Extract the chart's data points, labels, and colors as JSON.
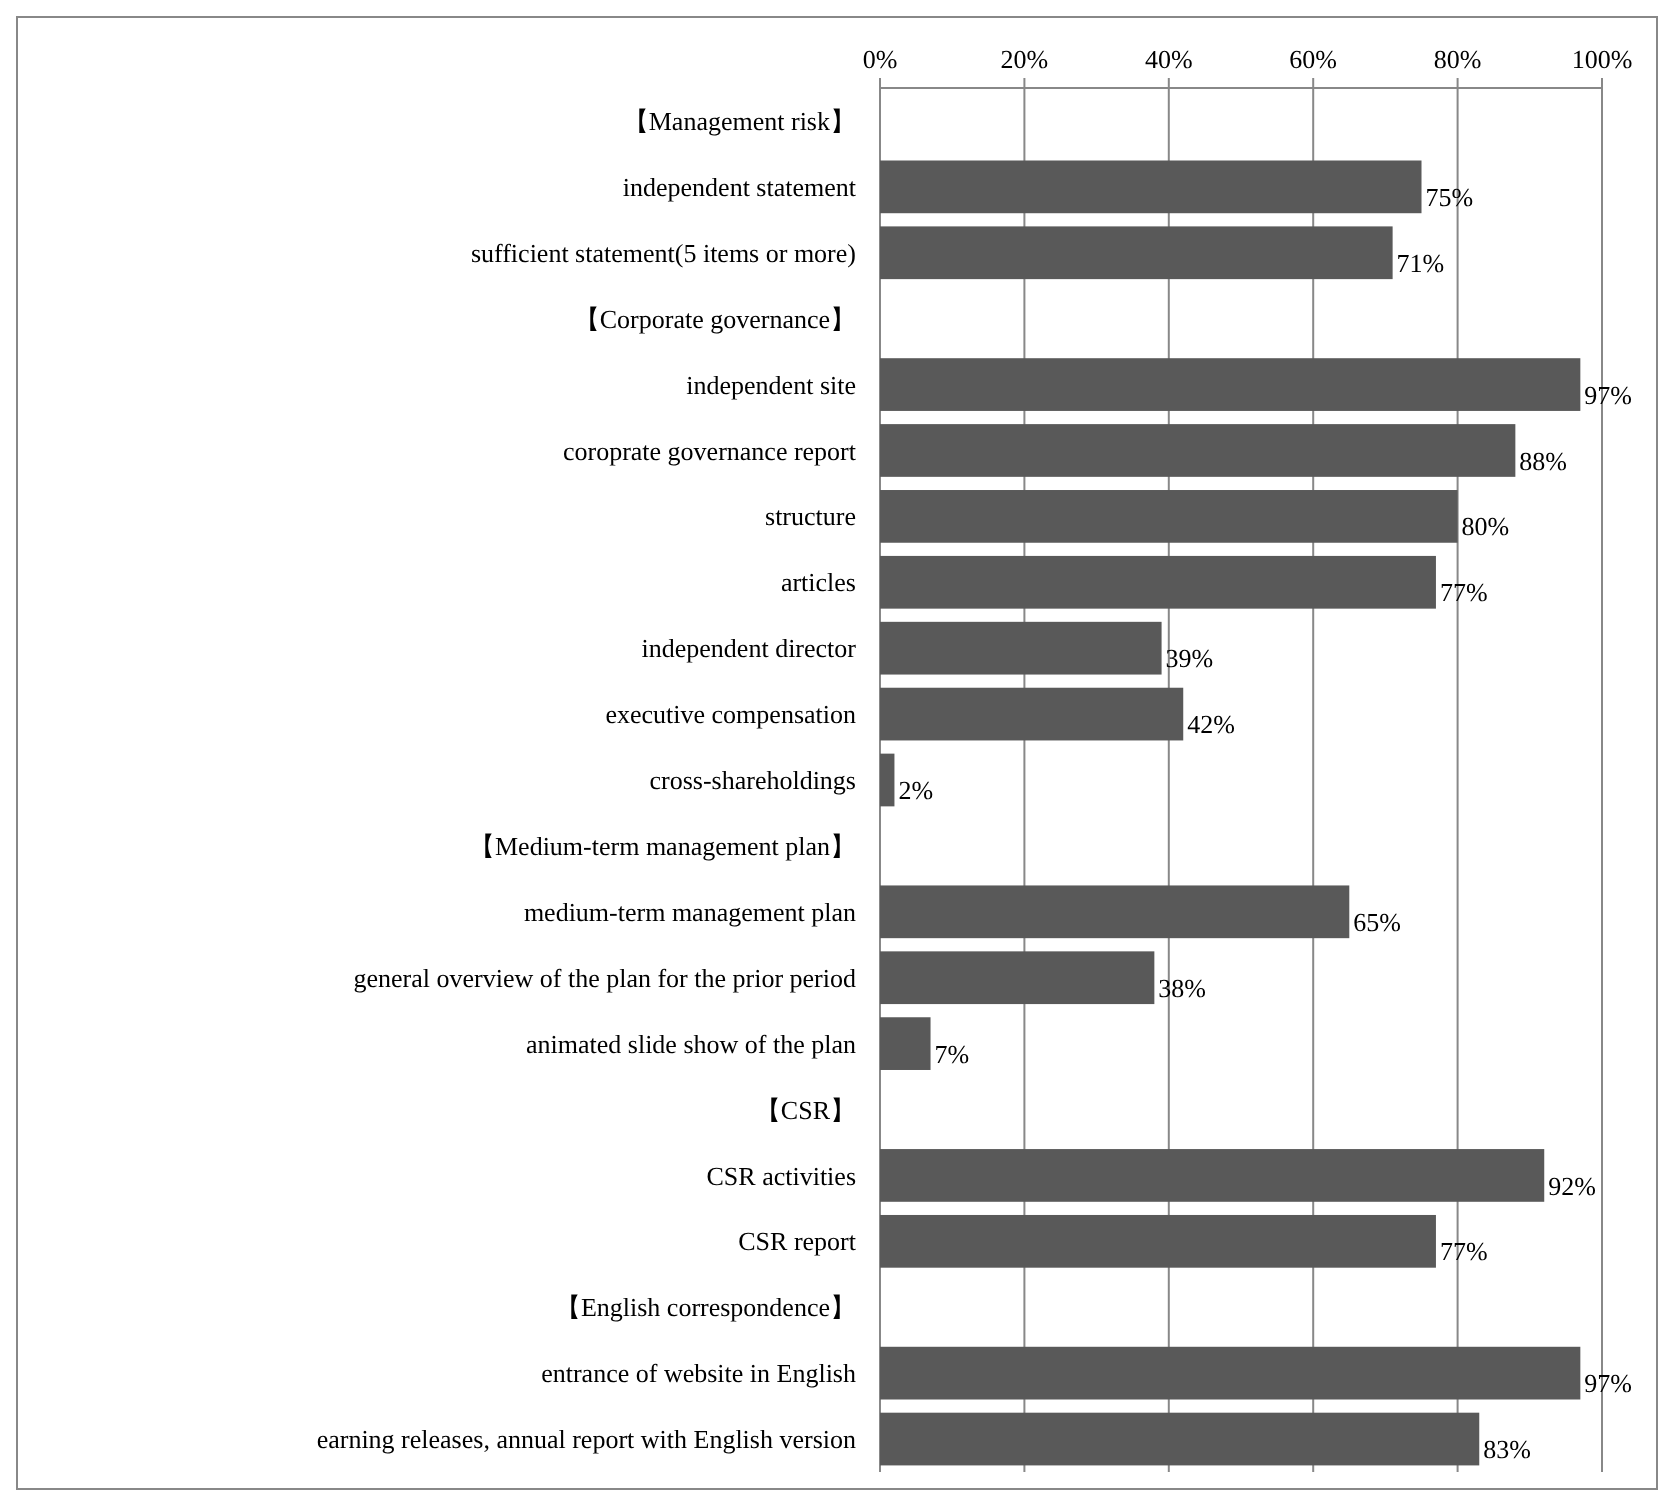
{
  "chart_data": {
    "type": "bar",
    "orientation": "horizontal",
    "categories": [
      "【Management risk】",
      "independent statement",
      "sufficient statement(5  items or more)",
      "【Corporate governance】",
      "independent site",
      "coroprate governance report",
      "structure",
      "articles",
      "independent director",
      "executive compensation",
      "cross-shareholdings",
      "【Medium-term management plan】",
      "medium-term management plan",
      "general overview of the plan for the prior period",
      "animated slide show of the plan",
      "【CSR】",
      "CSR activities",
      "CSR report",
      "【English correspondence】",
      "entrance of website in English",
      "earning releases, annual report with English version"
    ],
    "values": [
      null,
      75,
      71,
      null,
      97,
      88,
      80,
      77,
      39,
      42,
      2,
      null,
      65,
      38,
      7,
      null,
      92,
      77,
      null,
      97,
      83
    ],
    "value_labels": [
      null,
      "75%",
      "71%",
      null,
      "97%",
      "88%",
      "80%",
      "77%",
      "39%",
      "42%",
      "2%",
      null,
      "65%",
      "38%",
      "7%",
      null,
      "92%",
      "77%",
      null,
      "97%",
      "83%"
    ],
    "color": "#595959",
    "xlim": [
      0,
      100
    ],
    "xticks": [
      {
        "value": 0,
        "label": "0%"
      },
      {
        "value": 20,
        "label": "20%"
      },
      {
        "value": 40,
        "label": "40%"
      },
      {
        "value": 60,
        "label": "60%"
      },
      {
        "value": 80,
        "label": "80%"
      },
      {
        "value": 100,
        "label": "100%"
      }
    ],
    "grid": "x"
  }
}
